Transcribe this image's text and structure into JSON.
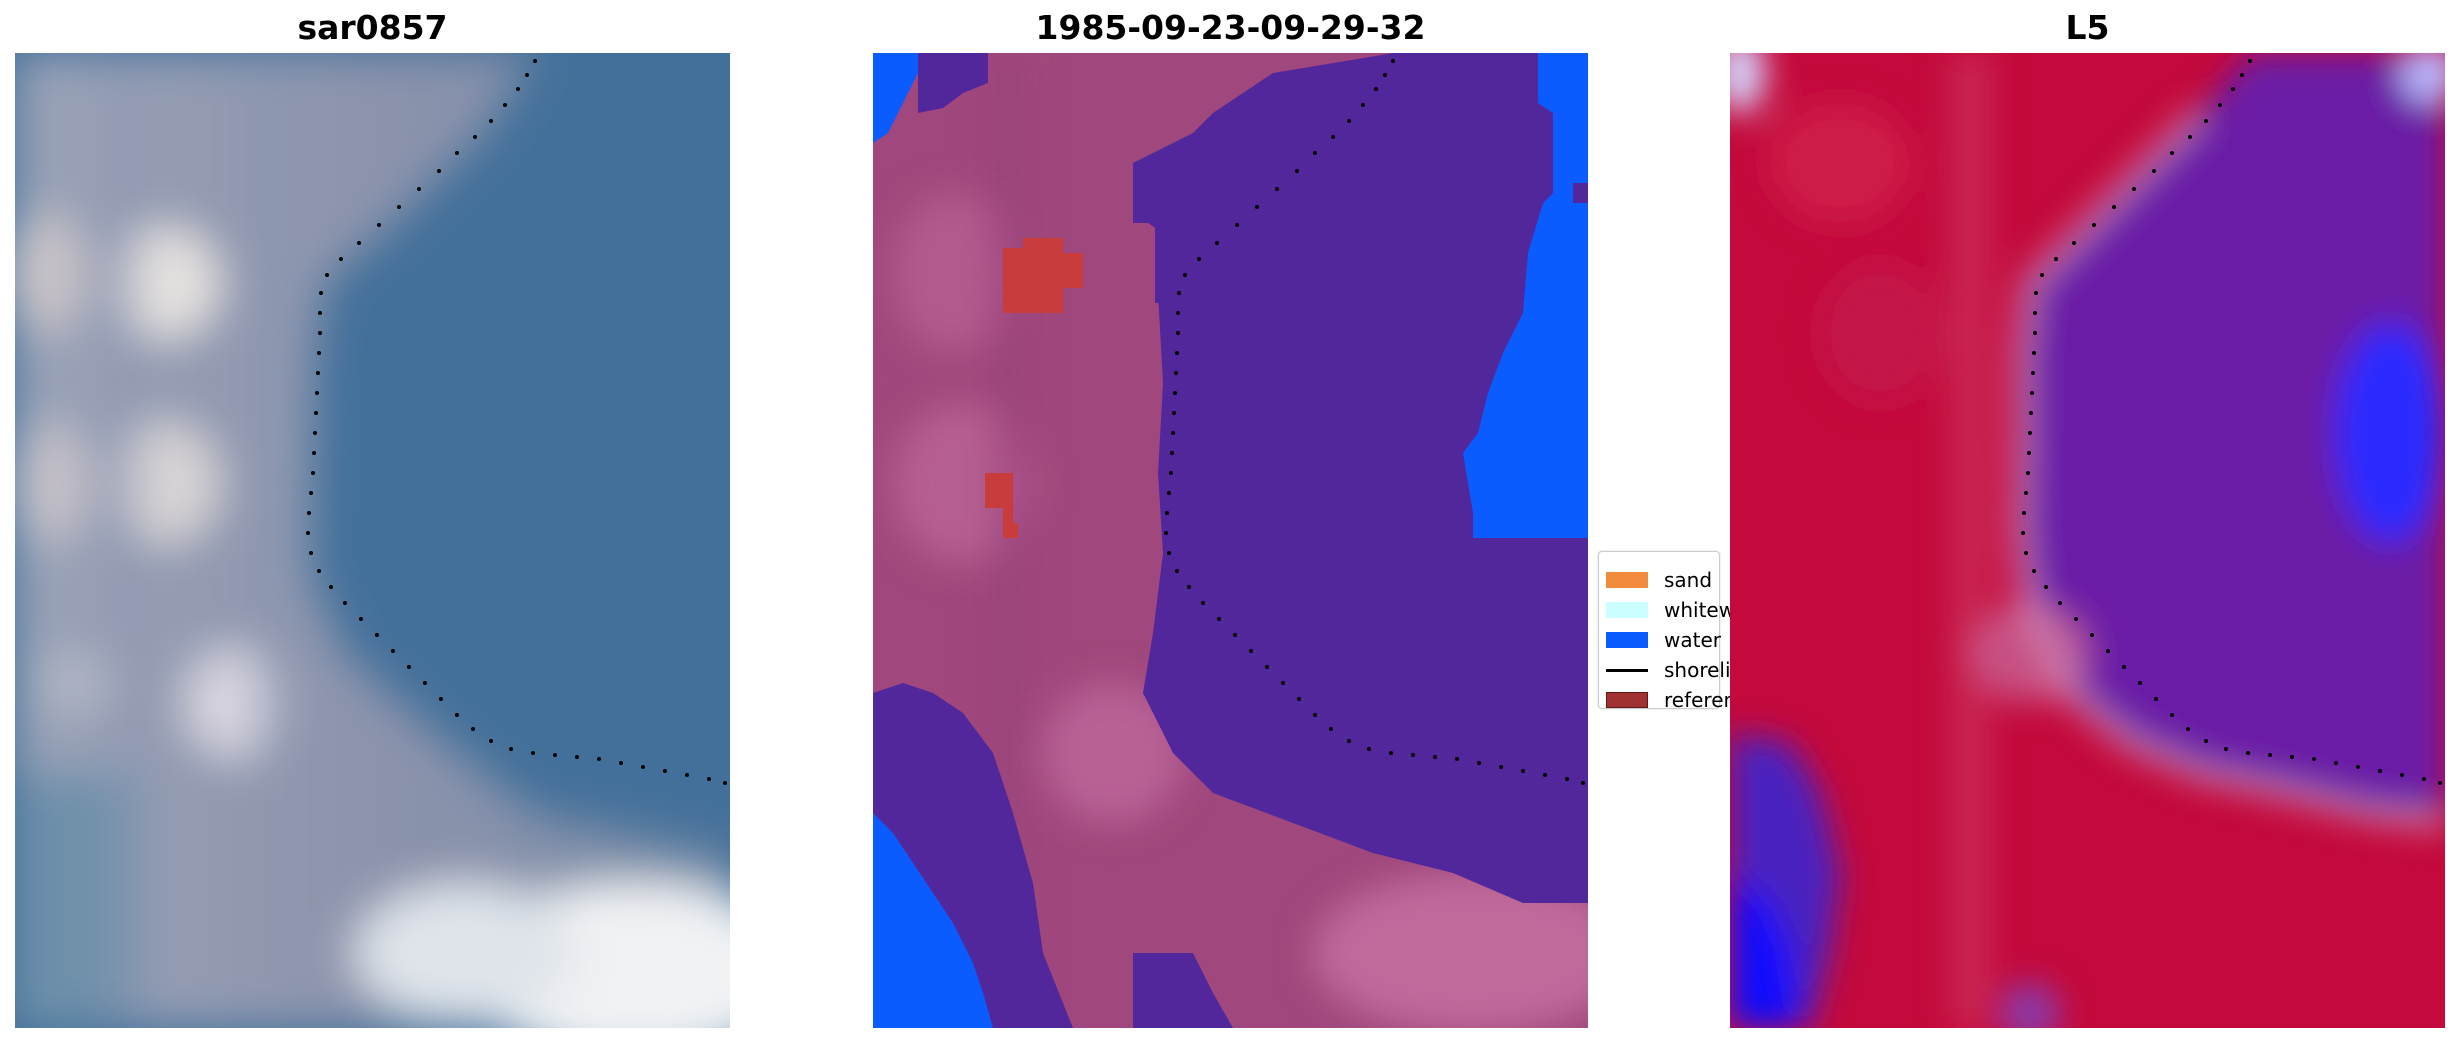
{
  "titles": {
    "left": "sar0857",
    "middle": "1985-09-23-09-29-32",
    "right": "L5"
  },
  "legend": {
    "items": [
      {
        "label": "sand",
        "color": "#f28c3c"
      },
      {
        "label": "whitewater",
        "color": "#ccffff"
      },
      {
        "label": "water",
        "color": "#0a5cff"
      },
      {
        "label": "shoreline",
        "color": "#000000"
      },
      {
        "label": "reference",
        "color": "#a03232"
      }
    ]
  },
  "colors": {
    "classified_sand_background": "#a0487d",
    "classified_water_inner": "#53279c",
    "classified_water_outer": "#0a5cff",
    "classified_reference": "#c83c3c",
    "rgb_water": "#3f6a95",
    "rgb_land": "#8a94aa",
    "mndwi_land": "#c00a3a",
    "mndwi_water": "#6a1aa6",
    "mndwi_blue": "#2a2aff"
  }
}
